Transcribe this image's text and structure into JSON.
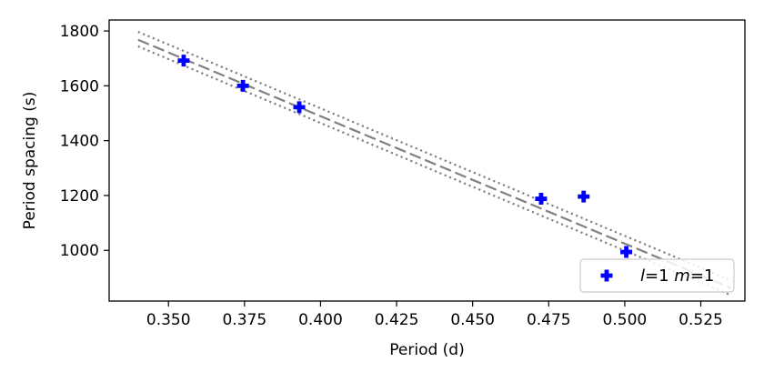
{
  "chart_data": {
    "type": "scatter",
    "xlabel": "Period (d)",
    "ylabel": "Period spacing (s)",
    "xlim": [
      0.3305,
      0.5395
    ],
    "ylim": [
      815,
      1840
    ],
    "xticks": [
      0.35,
      0.375,
      0.4,
      0.425,
      0.45,
      0.475,
      0.5,
      0.525
    ],
    "xtick_labels": [
      "0.350",
      "0.375",
      "0.400",
      "0.425",
      "0.450",
      "0.475",
      "0.500",
      "0.525"
    ],
    "yticks": [
      1000,
      1200,
      1400,
      1600,
      1800
    ],
    "ytick_labels": [
      "1000",
      "1200",
      "1400",
      "1600",
      "1800"
    ],
    "grid": false,
    "legend_position": "lower-right",
    "series": [
      {
        "name": "l=1 m=1",
        "legend_parts": [
          {
            "text": "l",
            "italic": true
          },
          {
            "text": "=1 ",
            "italic": false
          },
          {
            "text": "m",
            "italic": true
          },
          {
            "text": "=1",
            "italic": false
          }
        ],
        "marker": "plus-filled",
        "color": "#0000ff",
        "x": [
          0.355,
          0.3745,
          0.393,
          0.4725,
          0.4865,
          0.5005
        ],
        "y": [
          1692,
          1600,
          1522,
          1188,
          1196,
          994
        ]
      }
    ],
    "fit_lines": [
      {
        "style": "dashed",
        "color": "#808080",
        "x": [
          0.34,
          0.535
        ],
        "y": [
          1768,
          862
        ]
      },
      {
        "style": "dotted",
        "color": "#808080",
        "x": [
          0.34,
          0.535
        ],
        "y": [
          1797,
          890
        ]
      },
      {
        "style": "dotted",
        "color": "#808080",
        "x": [
          0.34,
          0.535
        ],
        "y": [
          1744,
          836
        ]
      }
    ]
  }
}
